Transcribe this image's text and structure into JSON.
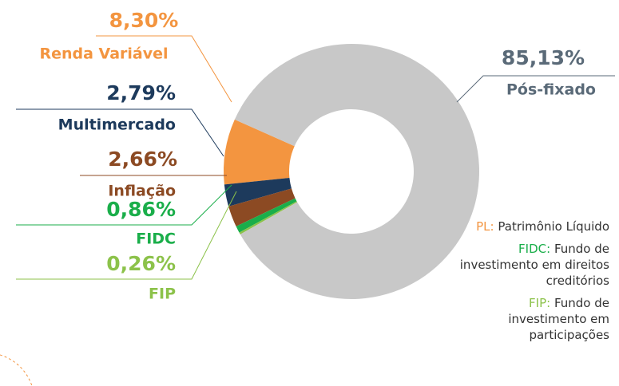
{
  "chart_data": {
    "type": "pie",
    "categories": [
      "Renda Variável",
      "Multimercado",
      "Inflação",
      "FIDC",
      "FIP",
      "Pós-fixado"
    ],
    "values": [
      8.3,
      2.79,
      2.66,
      0.86,
      0.26,
      85.13
    ],
    "value_labels": [
      "8,30%",
      "2,79%",
      "2,66%",
      "0,86%",
      "0,26%",
      "85,13%"
    ],
    "colors": [
      "#f39540",
      "#1d3a5c",
      "#8c4a23",
      "#1aae4a",
      "#8cc24a",
      "#c8c8c8"
    ],
    "label_colors": [
      "#f39540",
      "#1d3a5c",
      "#8c4a23",
      "#1aae4a",
      "#8cc24a",
      "#5a6a78"
    ],
    "donut": true,
    "notes": [
      {
        "term": "PL:",
        "definition": "Patrimônio Líquido"
      },
      {
        "term": "FIDC:",
        "definition": "Fundo de investimento em direitos creditórios"
      },
      {
        "term": "FIP:",
        "definition": "Fundo de investimento em participações"
      }
    ]
  }
}
